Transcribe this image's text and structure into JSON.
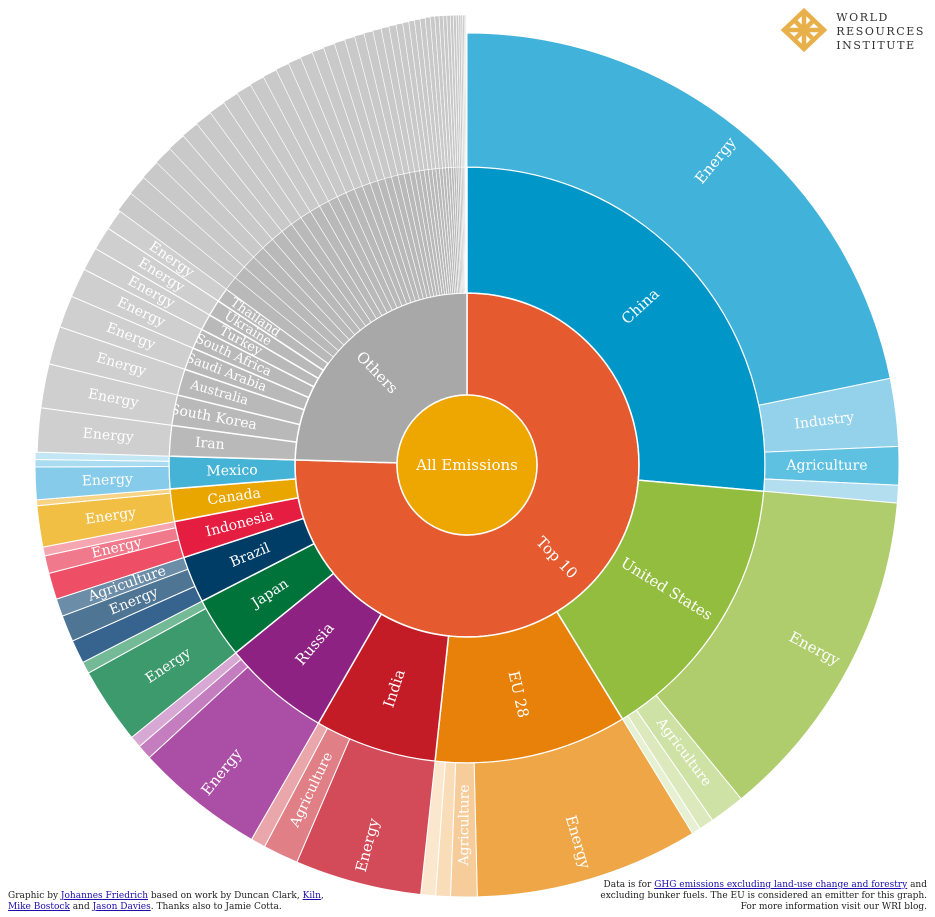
{
  "logo": {
    "line1": "WORLD",
    "line2": "RESOURCES",
    "line3": "INSTITUTE",
    "icon": "wri-lattice-icon",
    "color": "#e8b04a"
  },
  "footer": {
    "left_1a": "Graphic by ",
    "left_link1": "Johannes Friedrich",
    "left_1b": " based on work by Duncan Clark, ",
    "left_link2": "Kiln",
    "left_1c": ",",
    "left_link3": "Mike Bostock",
    "left_2a": " and ",
    "left_link4": "Jason Davies",
    "left_2b": ". Thanks also to Jamie Cotta.",
    "right_1a": "Data is for ",
    "right_link": "GHG emissions excluding land-use change and forestry",
    "right_1b": " and",
    "right_2": "excluding bunker fuels. The EU is considered an emitter for this graph.",
    "right_3": "For more information visit our WRI blog."
  },
  "chart_data": {
    "type": "sunburst",
    "root": "All Emissions",
    "unit": "share of global GHG emissions (%)",
    "groups": [
      {
        "name": "Top 10",
        "color": "#e55b2f",
        "children": [
          {
            "name": "China",
            "value": 24.0,
            "color": "#0097c8",
            "children": [
              {
                "name": "Energy",
                "value": 19.8,
                "color": "#41b2d9"
              },
              {
                "name": "Industry",
                "value": 2.3,
                "color": "#93d2ea"
              },
              {
                "name": "Agriculture",
                "value": 1.3,
                "color": "#5fc1e2"
              },
              {
                "name": "",
                "value": 0.6,
                "color": "#b2def0"
              }
            ]
          },
          {
            "name": "United States",
            "value": 13.5,
            "color": "#93bd3e",
            "children": [
              {
                "name": "Energy",
                "value": 11.5,
                "color": "#afcd6d"
              },
              {
                "name": "Agriculture",
                "value": 1.2,
                "color": "#cfe2a6"
              },
              {
                "name": "",
                "value": 0.5,
                "color": "#dbe9bd"
              },
              {
                "name": "",
                "value": 0.3,
                "color": "#e6f0d2"
              }
            ]
          },
          {
            "name": "EU 28",
            "value": 9.5,
            "color": "#e8810a",
            "children": [
              {
                "name": "Energy",
                "value": 7.6,
                "color": "#eea646"
              },
              {
                "name": "Agriculture",
                "value": 0.9,
                "color": "#f6cd9a"
              },
              {
                "name": "",
                "value": 0.5,
                "color": "#f9dcb8"
              },
              {
                "name": "",
                "value": 0.5,
                "color": "#fbe7cd"
              }
            ]
          },
          {
            "name": "India",
            "value": 6.0,
            "color": "#c41c27",
            "children": [
              {
                "name": "Energy",
                "value": 4.3,
                "color": "#d34a58"
              },
              {
                "name": "Agriculture",
                "value": 1.2,
                "color": "#e07f86"
              },
              {
                "name": "",
                "value": 0.5,
                "color": "#eaa7ab"
              }
            ]
          },
          {
            "name": "Russia",
            "value": 5.3,
            "color": "#8e2283",
            "children": [
              {
                "name": "Energy",
                "value": 4.4,
                "color": "#aa4fa5"
              },
              {
                "name": "",
                "value": 0.5,
                "color": "#c47ec0"
              },
              {
                "name": "",
                "value": 0.4,
                "color": "#d8a8d5"
              }
            ]
          },
          {
            "name": "Japan",
            "value": 3.0,
            "color": "#00733b",
            "children": [
              {
                "name": "Energy",
                "value": 2.6,
                "color": "#3c9a6c"
              },
              {
                "name": "",
                "value": 0.4,
                "color": "#75ba97"
              }
            ]
          },
          {
            "name": "Brazil",
            "value": 2.3,
            "color": "#003d66",
            "children": [
              {
                "name": "",
                "value": 0.8,
                "color": "#36648e"
              },
              {
                "name": "Energy",
                "value": 0.9,
                "color": "#4e7594"
              },
              {
                "name": "Agriculture",
                "value": 0.6,
                "color": "#6c8da8"
              }
            ]
          },
          {
            "name": "Indonesia",
            "value": 1.8,
            "color": "#e51d40",
            "children": [
              {
                "name": "",
                "value": 0.9,
                "color": "#ee4f66"
              },
              {
                "name": "Energy",
                "value": 0.6,
                "color": "#f07a8b"
              },
              {
                "name": "",
                "value": 0.3,
                "color": "#f6a6b1"
              }
            ]
          },
          {
            "name": "Canada",
            "value": 1.6,
            "color": "#eaa600",
            "children": [
              {
                "name": "Energy",
                "value": 1.4,
                "color": "#f2bf45"
              },
              {
                "name": "",
                "value": 0.2,
                "color": "#f7d485"
              }
            ]
          },
          {
            "name": "Mexico",
            "value": 1.6,
            "color": "#45b3d6",
            "children": [
              {
                "name": "Energy",
                "value": 1.1,
                "color": "#86ccea"
              },
              {
                "name": "",
                "value": 0.25,
                "color": "#a9dcf0"
              },
              {
                "name": "",
                "value": 0.25,
                "color": "#c3e6f4"
              }
            ]
          }
        ]
      },
      {
        "name": "Others",
        "color": "#a8a8a8",
        "children": [
          {
            "name": "Iran",
            "value": 1.5,
            "color": "#b9b9b9",
            "children": [
              {
                "name": "Energy",
                "value": 1.5,
                "color": "#cfcfcf"
              }
            ]
          },
          {
            "name": "South Korea",
            "value": 1.5,
            "color": "#b9b9b9",
            "children": [
              {
                "name": "Energy",
                "value": 1.5,
                "color": "#cfcfcf"
              }
            ]
          },
          {
            "name": "Australia",
            "value": 1.3,
            "color": "#b9b9b9",
            "children": [
              {
                "name": "Energy",
                "value": 1.3,
                "color": "#cfcfcf"
              }
            ]
          },
          {
            "name": "Saudi Arabia",
            "value": 1.1,
            "color": "#b9b9b9",
            "children": [
              {
                "name": "Energy",
                "value": 1.1,
                "color": "#cfcfcf"
              }
            ]
          },
          {
            "name": "South Africa",
            "value": 1.0,
            "color": "#b9b9b9",
            "children": [
              {
                "name": "Energy",
                "value": 1.0,
                "color": "#cfcfcf"
              }
            ]
          },
          {
            "name": "Turkey",
            "value": 0.8,
            "color": "#b9b9b9",
            "children": [
              {
                "name": "Energy",
                "value": 0.8,
                "color": "#cfcfcf"
              }
            ]
          },
          {
            "name": "Ukraine",
            "value": 0.8,
            "color": "#b9b9b9",
            "children": [
              {
                "name": "Energy",
                "value": 0.8,
                "color": "#cfcfcf"
              }
            ]
          },
          {
            "name": "Thailand",
            "value": 0.7,
            "color": "#b9b9b9",
            "children": [
              {
                "name": "Energy",
                "value": 0.7,
                "color": "#cfcfcf"
              }
            ]
          }
        ],
        "unlabeled_small_emitters": [
          0.7,
          0.68,
          0.66,
          0.64,
          0.62,
          0.6,
          0.58,
          0.56,
          0.54,
          0.52,
          0.5,
          0.48,
          0.46,
          0.44,
          0.42,
          0.4,
          0.38,
          0.36,
          0.34,
          0.32,
          0.3,
          0.28,
          0.26,
          0.24,
          0.22,
          0.2,
          0.19,
          0.18,
          0.17,
          0.16,
          0.15,
          0.14,
          0.13,
          0.12,
          0.11,
          0.1,
          0.09,
          0.08,
          0.07,
          0.06,
          0.05,
          0.04,
          0.03,
          0.02
        ],
        "unlabeled_color": "#c9c9c9"
      }
    ]
  }
}
